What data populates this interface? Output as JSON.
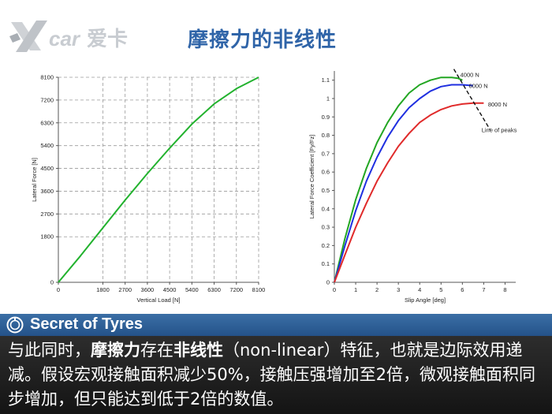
{
  "header": {
    "logo_text": "Xcar爱卡",
    "title": "摩擦力的非线性"
  },
  "charts": [
    {
      "type": "line",
      "title": "",
      "xlabel": "Vertical Load [N]",
      "ylabel": "Lateral Force [N]",
      "xticks": [
        0,
        1800,
        2700,
        3600,
        4500,
        5400,
        6300,
        7200,
        8100
      ],
      "yticks": [
        0,
        1800,
        2700,
        3600,
        4500,
        5400,
        6300,
        7200,
        8100
      ],
      "xlim": [
        0,
        8100
      ],
      "ylim": [
        0,
        8100
      ],
      "grid": true,
      "series": [
        {
          "name": "",
          "color": "#22b22e",
          "x": [
            0,
            900,
            1800,
            2700,
            3600,
            4500,
            5400,
            6300,
            7200,
            8100
          ],
          "y": [
            0,
            1050,
            2150,
            3250,
            4300,
            5300,
            6250,
            7050,
            7650,
            8100
          ]
        }
      ]
    },
    {
      "type": "line",
      "title": "",
      "xlabel": "Slip Angle [deg]",
      "ylabel": "Lateral Force Coefficient [Fy/Fz]",
      "xticks": [
        0,
        1,
        2,
        3,
        4,
        5,
        6,
        7,
        8
      ],
      "yticks": [
        0,
        0.1,
        0.2,
        0.3,
        0.4,
        0.5,
        0.6,
        0.7,
        0.8,
        0.9,
        1.0,
        1.1
      ],
      "xlim": [
        0,
        8.5
      ],
      "ylim": [
        0,
        1.15
      ],
      "grid": false,
      "series": [
        {
          "name": "4000 N",
          "color": "#22a622",
          "x": [
            0,
            0.5,
            1,
            1.5,
            2,
            2.5,
            3,
            3.5,
            4,
            4.5,
            5,
            5.5,
            5.8,
            6.0
          ],
          "y": [
            0,
            0.24,
            0.45,
            0.62,
            0.76,
            0.87,
            0.96,
            1.03,
            1.075,
            1.1,
            1.115,
            1.115,
            1.11,
            1.1
          ]
        },
        {
          "name": "6000 N",
          "color": "#1f2fe0",
          "x": [
            0,
            0.5,
            1,
            1.5,
            2,
            2.5,
            3,
            3.5,
            4,
            4.5,
            5,
            5.5,
            6.0,
            6.5
          ],
          "y": [
            0,
            0.2,
            0.39,
            0.55,
            0.68,
            0.79,
            0.88,
            0.95,
            1.0,
            1.04,
            1.065,
            1.075,
            1.075,
            1.07
          ]
        },
        {
          "name": "8000 N",
          "color": "#e02a2a",
          "x": [
            0,
            0.5,
            1,
            1.5,
            2,
            2.5,
            3,
            3.5,
            4,
            4.5,
            5,
            5.5,
            6.0,
            6.5,
            7.0
          ],
          "y": [
            0,
            0.15,
            0.3,
            0.43,
            0.55,
            0.65,
            0.74,
            0.81,
            0.87,
            0.91,
            0.94,
            0.96,
            0.97,
            0.975,
            0.975
          ]
        }
      ],
      "annotation": "Line of peaks",
      "peaks_line": {
        "x": [
          5.6,
          7.3
        ],
        "y": [
          1.16,
          0.83
        ]
      }
    }
  ],
  "banner": {
    "text": "Secret of Tyres"
  },
  "body": {
    "part1": "与此同时，",
    "bold1": "摩擦力",
    "part2": "存在",
    "bold2": "非线性",
    "part3": "（non-linear）特征，也就是边际效用递减。假设宏观接触面积减少50%，接触压强增加至2倍，微观接触面积同步增加，但只能达到低于2倍的数值。"
  },
  "colors": {
    "title": "#2f64a8",
    "banner": "#2f5f96",
    "bottom": "#1e1e1e"
  }
}
